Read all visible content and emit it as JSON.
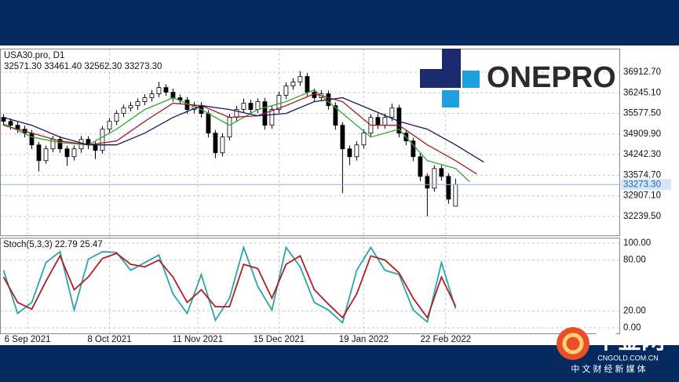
{
  "chart_data": [
    {
      "type": "candlestick",
      "symbol": "USA30.pro, D1",
      "ohlc_label": "32571.30 33461.40 32562.30 33273.30",
      "x": [
        0,
        1,
        2,
        3,
        4,
        5,
        6,
        7,
        8,
        9,
        10,
        11,
        12,
        13,
        14,
        15,
        16,
        17,
        18,
        19,
        20,
        21,
        22,
        23,
        24,
        25,
        26,
        27,
        28,
        29,
        30,
        31,
        32,
        33,
        34,
        35,
        36,
        37,
        38,
        39,
        40,
        41,
        42,
        43,
        44,
        45,
        46,
        47,
        48,
        49,
        50,
        51,
        52,
        53,
        54,
        55,
        56,
        57,
        58,
        59,
        60,
        61,
        62,
        63,
        64
      ],
      "open": [
        35450,
        35320,
        35194,
        35066,
        34939,
        34557,
        34048,
        34430,
        34736,
        34430,
        34175,
        34430,
        34736,
        34557,
        34379,
        35066,
        35320,
        35576,
        35754,
        35830,
        35958,
        36085,
        36213,
        36416,
        36264,
        36085,
        36009,
        35704,
        35830,
        35576,
        34939,
        34302,
        34812,
        35448,
        35704,
        35907,
        35704,
        35958,
        35194,
        35704,
        36162,
        36467,
        36595,
        36773,
        36264,
        36085,
        36213,
        35830,
        35194,
        34430,
        34175,
        34557,
        34939,
        35448,
        35194,
        35448,
        35754,
        34939,
        34685,
        34175,
        33538,
        33156,
        33793,
        33538,
        32571.3
      ],
      "high": [
        35560,
        35420,
        35300,
        35180,
        35040,
        34650,
        34530,
        34850,
        34840,
        34530,
        34540,
        34850,
        34840,
        34660,
        35170,
        35430,
        35680,
        35860,
        35950,
        36070,
        36200,
        36330,
        36600,
        36520,
        36380,
        36190,
        36110,
        35950,
        35940,
        35680,
        35040,
        34930,
        35560,
        35820,
        36060,
        36020,
        36070,
        36080,
        35820,
        36280,
        36580,
        36720,
        36950,
        36880,
        36380,
        36330,
        36320,
        35940,
        35300,
        34540,
        34680,
        35060,
        35560,
        35560,
        35580,
        35900,
        35860,
        35040,
        34790,
        34280,
        33640,
        33900,
        33900,
        33640,
        33461.4
      ],
      "low": [
        35180,
        35050,
        34940,
        34800,
        34420,
        33700,
        33950,
        34320,
        34300,
        33880,
        34050,
        34300,
        34420,
        34100,
        34270,
        34950,
        35200,
        35460,
        35640,
        35700,
        35840,
        35960,
        36100,
        36150,
        35960,
        35880,
        35560,
        35580,
        35440,
        34800,
        34130,
        34180,
        34700,
        35330,
        35590,
        35580,
        35580,
        35050,
        35080,
        35590,
        36040,
        36340,
        36470,
        36140,
        35950,
        35970,
        35700,
        35050,
        33000,
        33900,
        34050,
        34440,
        34820,
        35070,
        35080,
        35330,
        34800,
        34550,
        34030,
        33380,
        32240,
        33040,
        33400,
        32650,
        32562.3
      ],
      "close": [
        35320,
        35194,
        35066,
        34939,
        34557,
        34048,
        34430,
        34736,
        34430,
        34175,
        34430,
        34736,
        34557,
        34379,
        35066,
        35320,
        35576,
        35754,
        35830,
        35958,
        36085,
        36213,
        36416,
        36264,
        36085,
        36009,
        35704,
        35830,
        35576,
        34939,
        34302,
        34812,
        35448,
        35704,
        35907,
        35704,
        35958,
        35194,
        35704,
        36162,
        36467,
        36595,
        36773,
        36264,
        36085,
        36213,
        35830,
        35194,
        34430,
        34175,
        34557,
        34939,
        35448,
        35194,
        35448,
        35754,
        34939,
        34685,
        34175,
        33538,
        33156,
        33793,
        33538,
        32800,
        33273.3
      ],
      "up_color": "#ffffff",
      "down_color": "#000000",
      "series": [
        {
          "color": "#2eaa2e",
          "x": [
            0,
            4,
            8,
            12,
            16,
            20,
            24,
            28,
            32,
            36,
            40,
            44,
            48,
            52,
            56,
            60,
            64,
            66
          ],
          "values": [
            35245,
            34812,
            34634,
            34557,
            35066,
            35704,
            36085,
            35704,
            35194,
            35704,
            35958,
            36340,
            35576,
            34812,
            35066,
            34048,
            33793,
            33360
          ]
        },
        {
          "color": "#a3202a",
          "x": [
            0,
            4,
            8,
            12,
            16,
            20,
            24,
            28,
            32,
            36,
            40,
            44,
            48,
            52,
            56,
            60,
            64,
            67
          ],
          "values": [
            35194,
            34939,
            34685,
            34557,
            34685,
            35320,
            35907,
            35830,
            35448,
            35500,
            35830,
            36213,
            35958,
            35194,
            35194,
            34557,
            34048,
            33615
          ]
        },
        {
          "color": "#14185e",
          "x": [
            0,
            4,
            8,
            12,
            16,
            20,
            24,
            28,
            32,
            36,
            40,
            44,
            48,
            52,
            56,
            60,
            64,
            68
          ],
          "values": [
            35448,
            35194,
            34812,
            34557,
            34557,
            34939,
            35448,
            35830,
            35704,
            35500,
            35576,
            35958,
            36085,
            35704,
            35320,
            35066,
            34557,
            34000
          ]
        }
      ],
      "last_price": {
        "value": 33273.3,
        "label": "33273.30"
      },
      "xlim": [
        -0.5,
        87.3
      ],
      "ylim": [
        31628,
        37676
      ],
      "xticks": [
        {
          "value": 3.4,
          "label": "6 Sep 2021"
        },
        {
          "value": 15,
          "label": "8 Oct 2021"
        },
        {
          "value": 27.5,
          "label": "11 Nov 2021"
        },
        {
          "value": 39,
          "label": "15 Dec 2021"
        },
        {
          "value": 51,
          "label": "19 Jan 2022"
        },
        {
          "value": 62.6,
          "label": "22 Feb 2022"
        }
      ],
      "yticks": [
        {
          "value": 32239.5,
          "label": "32239.50"
        },
        {
          "value": 32907.1,
          "label": "32907.10"
        },
        {
          "value": 33574.7,
          "label": "33574.70"
        },
        {
          "value": 34242.3,
          "label": "34242.30"
        },
        {
          "value": 34909.9,
          "label": "34909.90"
        },
        {
          "value": 35577.5,
          "label": "35577.50"
        },
        {
          "value": 36245.1,
          "label": "36245.10"
        },
        {
          "value": 36912.7,
          "label": "36912.70"
        }
      ],
      "grid": true
    },
    {
      "type": "line",
      "title": "Stoch(5,3,3)",
      "x": [
        0,
        2,
        4,
        6,
        8,
        10,
        12,
        14,
        16,
        18,
        20,
        22,
        24,
        26,
        28,
        30,
        32,
        34,
        36,
        38,
        40,
        42,
        44,
        46,
        48,
        50,
        52,
        54,
        56,
        58,
        60,
        62,
        64
      ],
      "series": [
        {
          "color": "#2aa6a8",
          "values": [
            68,
            17,
            30,
            77,
            90,
            21,
            81,
            90,
            89,
            68,
            77,
            86,
            40,
            17,
            63,
            9,
            35,
            95,
            49,
            21,
            95,
            72,
            30,
            21,
            6,
            68,
            95,
            68,
            63,
            21,
            7,
            77,
            22.79
          ]
        },
        {
          "color": "#b01e24",
          "values": [
            60,
            30,
            22,
            55,
            85,
            45,
            60,
            82,
            88,
            75,
            72,
            80,
            60,
            30,
            45,
            25,
            25,
            75,
            70,
            35,
            75,
            85,
            45,
            28,
            12,
            40,
            85,
            80,
            65,
            35,
            12,
            60,
            25.47
          ]
        }
      ],
      "xlim": [
        -0.5,
        87.3
      ],
      "ylim": [
        -6.5,
        106.5
      ],
      "yticks": [
        {
          "value": 100,
          "label": "100.00"
        },
        {
          "value": 80,
          "label": "80.00"
        },
        {
          "value": 20,
          "label": "20.00"
        },
        {
          "value": 0,
          "label": "0.00"
        }
      ],
      "grid": true
    }
  ],
  "branding": {
    "logo": "ONEPRO",
    "watermark": "中金网",
    "watermark_url": "CNGOLD.COM.CN",
    "watermark_tagline": "中 文 财 经 新 媒 体"
  }
}
